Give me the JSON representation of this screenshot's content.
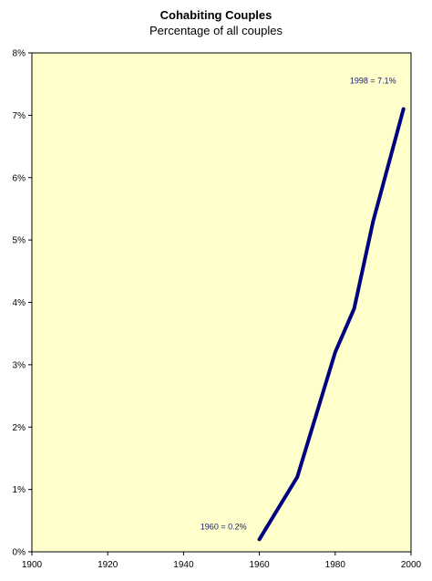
{
  "chart_data": {
    "type": "line",
    "title": "Cohabiting Couples",
    "subtitle": "Percentage of all couples",
    "xlabel": "",
    "ylabel": "",
    "xlim": [
      1900,
      2000
    ],
    "ylim": [
      0,
      8
    ],
    "x_ticks": [
      1900,
      1920,
      1940,
      1960,
      1980,
      2000
    ],
    "y_ticks": [
      0,
      1,
      2,
      3,
      4,
      5,
      6,
      7,
      8
    ],
    "y_tick_labels": [
      "0%",
      "1%",
      "2%",
      "3%",
      "4%",
      "5%",
      "6%",
      "7%",
      "8%"
    ],
    "grid": false,
    "legend": "none",
    "series": [
      {
        "x": [
          1960,
          1970,
          1980,
          1985,
          1990,
          1998
        ],
        "y": [
          0.2,
          1.2,
          3.2,
          3.9,
          5.3,
          7.1
        ],
        "color": "#000080"
      }
    ],
    "annotations": [
      {
        "text": "1960 = 0.2%",
        "x": 1960,
        "y": 0.2
      },
      {
        "text": "1998 = 7.1%",
        "x": 1998,
        "y": 7.1
      }
    ],
    "plot_background": "#ffffcc"
  }
}
